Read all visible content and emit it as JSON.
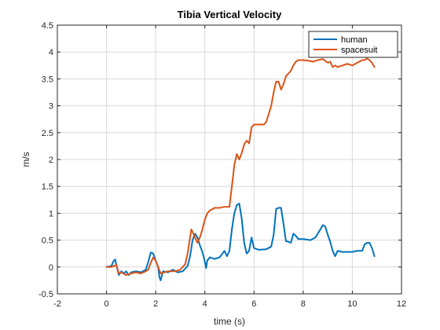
{
  "chart_data": {
    "type": "line",
    "title": "Tibia Vertical Velocity",
    "xlabel": "time (s)",
    "ylabel": "m/s",
    "xlim": [
      -2,
      12
    ],
    "ylim": [
      -0.5,
      4.5
    ],
    "xticks": [
      -2,
      0,
      2,
      4,
      6,
      8,
      10,
      12
    ],
    "yticks": [
      -0.5,
      0,
      0.5,
      1,
      1.5,
      2,
      2.5,
      3,
      3.5,
      4,
      4.5
    ],
    "grid": true,
    "legend_position": "top-right",
    "series": [
      {
        "name": "human",
        "color": "#0072BD",
        "points": [
          [
            0.0,
            0.0
          ],
          [
            0.2,
            0.02
          ],
          [
            0.3,
            0.12
          ],
          [
            0.35,
            0.14
          ],
          [
            0.42,
            0.0
          ],
          [
            0.5,
            -0.15
          ],
          [
            0.6,
            -0.08
          ],
          [
            0.7,
            -0.12
          ],
          [
            0.8,
            -0.08
          ],
          [
            0.9,
            -0.15
          ],
          [
            1.0,
            -0.1
          ],
          [
            1.2,
            -0.08
          ],
          [
            1.4,
            -0.1
          ],
          [
            1.6,
            -0.05
          ],
          [
            1.7,
            0.1
          ],
          [
            1.8,
            0.27
          ],
          [
            1.9,
            0.25
          ],
          [
            2.0,
            0.12
          ],
          [
            2.1,
            0.0
          ],
          [
            2.15,
            -0.18
          ],
          [
            2.2,
            -0.25
          ],
          [
            2.3,
            -0.08
          ],
          [
            2.5,
            -0.1
          ],
          [
            2.7,
            -0.05
          ],
          [
            2.9,
            -0.1
          ],
          [
            3.1,
            -0.08
          ],
          [
            3.3,
            0.02
          ],
          [
            3.4,
            0.2
          ],
          [
            3.5,
            0.5
          ],
          [
            3.6,
            0.62
          ],
          [
            3.7,
            0.55
          ],
          [
            3.8,
            0.4
          ],
          [
            3.9,
            0.28
          ],
          [
            4.0,
            0.1
          ],
          [
            4.05,
            -0.02
          ],
          [
            4.1,
            0.12
          ],
          [
            4.2,
            0.18
          ],
          [
            4.4,
            0.15
          ],
          [
            4.6,
            0.18
          ],
          [
            4.8,
            0.3
          ],
          [
            4.9,
            0.2
          ],
          [
            5.0,
            0.3
          ],
          [
            5.1,
            0.7
          ],
          [
            5.2,
            1.0
          ],
          [
            5.3,
            1.15
          ],
          [
            5.4,
            1.18
          ],
          [
            5.5,
            0.9
          ],
          [
            5.6,
            0.45
          ],
          [
            5.7,
            0.25
          ],
          [
            5.8,
            0.3
          ],
          [
            5.9,
            0.55
          ],
          [
            6.0,
            0.35
          ],
          [
            6.2,
            0.32
          ],
          [
            6.5,
            0.33
          ],
          [
            6.7,
            0.38
          ],
          [
            6.8,
            0.6
          ],
          [
            6.9,
            1.08
          ],
          [
            7.0,
            1.1
          ],
          [
            7.1,
            1.1
          ],
          [
            7.2,
            0.8
          ],
          [
            7.3,
            0.48
          ],
          [
            7.4,
            0.47
          ],
          [
            7.5,
            0.45
          ],
          [
            7.6,
            0.62
          ],
          [
            7.7,
            0.58
          ],
          [
            7.8,
            0.52
          ],
          [
            8.0,
            0.52
          ],
          [
            8.3,
            0.5
          ],
          [
            8.5,
            0.55
          ],
          [
            8.7,
            0.7
          ],
          [
            8.8,
            0.78
          ],
          [
            8.9,
            0.75
          ],
          [
            9.0,
            0.6
          ],
          [
            9.1,
            0.47
          ],
          [
            9.2,
            0.3
          ],
          [
            9.3,
            0.2
          ],
          [
            9.4,
            0.3
          ],
          [
            9.6,
            0.28
          ],
          [
            9.8,
            0.28
          ],
          [
            10.0,
            0.28
          ],
          [
            10.2,
            0.3
          ],
          [
            10.4,
            0.3
          ],
          [
            10.5,
            0.42
          ],
          [
            10.6,
            0.45
          ],
          [
            10.7,
            0.45
          ],
          [
            10.8,
            0.35
          ],
          [
            10.9,
            0.2
          ]
        ]
      },
      {
        "name": "spacesuit",
        "color": "#D95319",
        "points": [
          [
            0.0,
            0.0
          ],
          [
            0.2,
            0.0
          ],
          [
            0.3,
            0.02
          ],
          [
            0.4,
            0.04
          ],
          [
            0.5,
            -0.12
          ],
          [
            0.6,
            -0.1
          ],
          [
            0.8,
            -0.15
          ],
          [
            1.0,
            -0.12
          ],
          [
            1.2,
            -0.1
          ],
          [
            1.4,
            -0.12
          ],
          [
            1.6,
            -0.08
          ],
          [
            1.7,
            -0.05
          ],
          [
            1.8,
            0.08
          ],
          [
            1.9,
            0.18
          ],
          [
            2.0,
            0.12
          ],
          [
            2.2,
            -0.12
          ],
          [
            2.5,
            -0.08
          ],
          [
            2.8,
            -0.08
          ],
          [
            3.0,
            -0.05
          ],
          [
            3.2,
            0.05
          ],
          [
            3.3,
            0.25
          ],
          [
            3.4,
            0.55
          ],
          [
            3.45,
            0.7
          ],
          [
            3.5,
            0.65
          ],
          [
            3.6,
            0.55
          ],
          [
            3.7,
            0.45
          ],
          [
            3.8,
            0.55
          ],
          [
            3.9,
            0.7
          ],
          [
            4.0,
            0.88
          ],
          [
            4.1,
            1.0
          ],
          [
            4.2,
            1.05
          ],
          [
            4.4,
            1.1
          ],
          [
            4.6,
            1.1
          ],
          [
            4.8,
            1.12
          ],
          [
            5.0,
            1.12
          ],
          [
            5.1,
            1.5
          ],
          [
            5.2,
            1.9
          ],
          [
            5.3,
            2.1
          ],
          [
            5.4,
            2.0
          ],
          [
            5.5,
            2.12
          ],
          [
            5.6,
            2.28
          ],
          [
            5.7,
            2.35
          ],
          [
            5.8,
            2.3
          ],
          [
            5.9,
            2.6
          ],
          [
            6.0,
            2.65
          ],
          [
            6.2,
            2.65
          ],
          [
            6.4,
            2.65
          ],
          [
            6.5,
            2.7
          ],
          [
            6.6,
            2.85
          ],
          [
            6.7,
            3.0
          ],
          [
            6.8,
            3.25
          ],
          [
            6.9,
            3.45
          ],
          [
            7.0,
            3.45
          ],
          [
            7.1,
            3.3
          ],
          [
            7.2,
            3.4
          ],
          [
            7.3,
            3.55
          ],
          [
            7.5,
            3.65
          ],
          [
            7.6,
            3.75
          ],
          [
            7.7,
            3.82
          ],
          [
            7.8,
            3.85
          ],
          [
            8.0,
            3.85
          ],
          [
            8.2,
            3.84
          ],
          [
            8.4,
            3.82
          ],
          [
            8.6,
            3.85
          ],
          [
            8.8,
            3.87
          ],
          [
            9.0,
            3.8
          ],
          [
            9.1,
            3.82
          ],
          [
            9.2,
            3.72
          ],
          [
            9.3,
            3.75
          ],
          [
            9.4,
            3.72
          ],
          [
            9.6,
            3.75
          ],
          [
            9.8,
            3.78
          ],
          [
            10.0,
            3.75
          ],
          [
            10.2,
            3.8
          ],
          [
            10.4,
            3.85
          ],
          [
            10.5,
            3.85
          ],
          [
            10.6,
            3.88
          ],
          [
            10.7,
            3.85
          ],
          [
            10.8,
            3.8
          ],
          [
            10.9,
            3.72
          ]
        ]
      }
    ]
  }
}
